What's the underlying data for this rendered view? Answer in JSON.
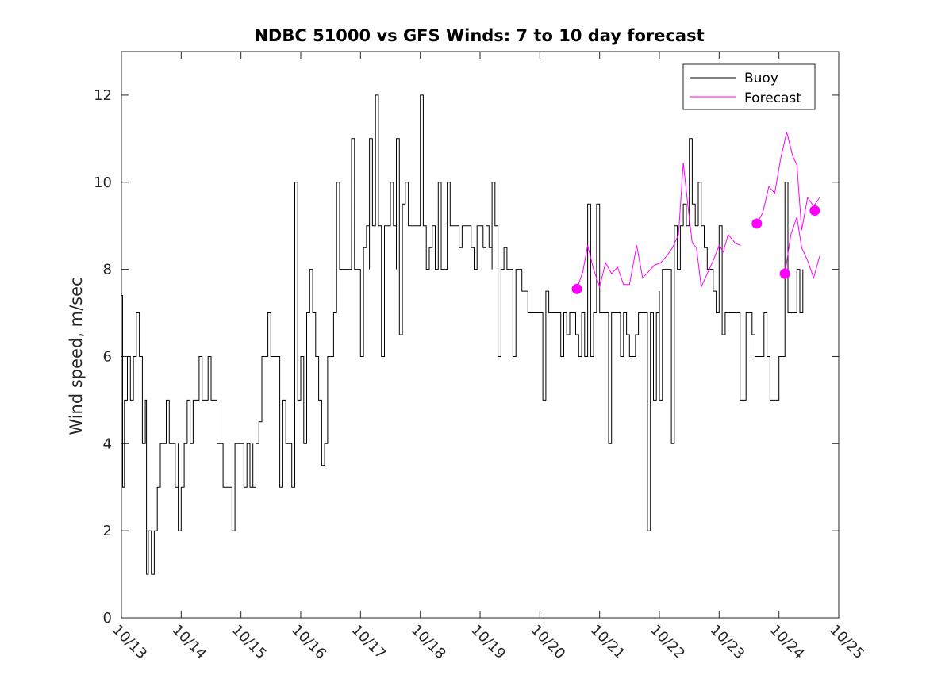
{
  "chart_data": {
    "type": "line",
    "title": "NDBC 51000 vs GFS Winds: 7 to 10 day forecast",
    "xlabel": "",
    "ylabel": "Wind speed, m/sec",
    "xlim": [
      0,
      12
    ],
    "ylim": [
      0,
      13
    ],
    "x_ticks": [
      0,
      1,
      2,
      3,
      4,
      5,
      6,
      7,
      8,
      9,
      10,
      11,
      12
    ],
    "x_tick_labels": [
      "10/13",
      "10/14",
      "10/15",
      "10/16",
      "10/17",
      "10/18",
      "10/19",
      "10/20",
      "10/21",
      "10/22",
      "10/23",
      "10/24",
      "10/25"
    ],
    "y_ticks": [
      0,
      2,
      4,
      6,
      8,
      10,
      12
    ],
    "y_tick_labels": [
      "0",
      "2",
      "4",
      "6",
      "8",
      "10",
      "12"
    ],
    "x_units": "days since 10/13",
    "legend": {
      "position": "top-right",
      "entries": [
        "Buoy",
        "Forecast"
      ]
    },
    "colors": {
      "buoy": "#000000",
      "forecast": "#ff00ff",
      "axes": "#262626"
    },
    "buoy_anchor_points": [
      [
        0.0,
        7.4
      ],
      [
        0.02,
        3.0
      ],
      [
        0.05,
        5.0
      ],
      [
        0.1,
        6.0
      ],
      [
        0.15,
        5.0
      ],
      [
        0.2,
        6.0
      ],
      [
        0.25,
        7.0
      ],
      [
        0.3,
        6.0
      ],
      [
        0.35,
        4.0
      ],
      [
        0.4,
        5.0
      ],
      [
        0.45,
        2.0
      ],
      [
        0.5,
        1.0
      ],
      [
        0.55,
        2.0
      ],
      [
        0.6,
        3.0
      ],
      [
        0.65,
        4.0
      ],
      [
        0.7,
        4.0
      ],
      [
        0.75,
        5.0
      ],
      [
        0.8,
        4.0
      ],
      [
        0.85,
        4.0
      ],
      [
        0.9,
        3.0
      ],
      [
        0.95,
        4.0
      ],
      [
        1.0,
        3.0
      ],
      [
        1.05,
        4.0
      ],
      [
        1.1,
        5.0
      ],
      [
        1.15,
        4.0
      ],
      [
        1.2,
        5.0
      ],
      [
        1.25,
        5.0
      ],
      [
        1.3,
        6.0
      ],
      [
        1.35,
        5.0
      ],
      [
        1.4,
        5.0
      ],
      [
        1.45,
        6.0
      ],
      [
        1.5,
        5.0
      ],
      [
        1.55,
        5.0
      ],
      [
        1.6,
        4.0
      ],
      [
        1.65,
        4.0
      ],
      [
        1.7,
        3.0
      ],
      [
        1.75,
        3.0
      ],
      [
        1.8,
        3.0
      ],
      [
        1.85,
        3.0
      ],
      [
        1.9,
        4.0
      ],
      [
        1.95,
        4.0
      ],
      [
        2.0,
        4.0
      ],
      [
        2.05,
        3.0
      ],
      [
        2.1,
        4.0
      ],
      [
        2.15,
        3.0
      ],
      [
        2.2,
        4.0
      ],
      [
        2.25,
        4.0
      ],
      [
        2.3,
        4.5
      ],
      [
        2.35,
        6.0
      ],
      [
        2.4,
        6.0
      ],
      [
        2.45,
        7.0
      ],
      [
        2.5,
        6.0
      ],
      [
        2.55,
        6.0
      ],
      [
        2.6,
        6.0
      ],
      [
        2.65,
        6.0
      ],
      [
        2.7,
        5.0
      ],
      [
        2.75,
        4.0
      ],
      [
        2.8,
        4.0
      ],
      [
        2.85,
        3.0
      ],
      [
        2.9,
        4.0
      ],
      [
        2.95,
        5.0
      ],
      [
        3.0,
        6.0
      ],
      [
        3.05,
        6.0
      ],
      [
        3.1,
        7.0
      ],
      [
        3.15,
        8.0
      ],
      [
        3.2,
        7.0
      ],
      [
        3.25,
        6.0
      ],
      [
        3.3,
        5.0
      ],
      [
        3.35,
        3.5
      ],
      [
        3.4,
        4.0
      ],
      [
        3.45,
        6.0
      ],
      [
        3.5,
        6.0
      ],
      [
        3.55,
        7.0
      ],
      [
        3.6,
        7.0
      ],
      [
        3.65,
        8.0
      ],
      [
        3.7,
        8.0
      ],
      [
        3.75,
        8.0
      ],
      [
        3.8,
        8.0
      ],
      [
        3.85,
        9.0
      ],
      [
        3.9,
        8.0
      ],
      [
        3.95,
        8.0
      ],
      [
        4.0,
        8.0
      ],
      [
        4.05,
        8.5
      ],
      [
        4.1,
        9.0
      ],
      [
        4.15,
        8.0
      ],
      [
        4.2,
        9.0
      ],
      [
        4.25,
        10.0
      ],
      [
        4.3,
        9.0
      ],
      [
        4.35,
        8.0
      ],
      [
        4.4,
        9.0
      ],
      [
        4.45,
        9.0
      ],
      [
        4.5,
        10.0
      ],
      [
        4.55,
        9.0
      ],
      [
        4.6,
        8.0
      ],
      [
        4.65,
        9.0
      ],
      [
        4.7,
        9.5
      ],
      [
        4.75,
        10.0
      ],
      [
        4.8,
        9.0
      ],
      [
        4.85,
        9.0
      ],
      [
        4.9,
        9.0
      ],
      [
        4.95,
        9.0
      ],
      [
        5.0,
        9.0
      ],
      [
        5.05,
        9.0
      ],
      [
        5.1,
        8.0
      ],
      [
        5.15,
        8.5
      ],
      [
        5.2,
        9.0
      ],
      [
        5.25,
        8.0
      ],
      [
        5.3,
        8.0
      ],
      [
        5.35,
        8.0
      ],
      [
        5.4,
        8.0
      ],
      [
        5.45,
        8.5
      ],
      [
        5.5,
        9.0
      ],
      [
        5.55,
        9.0
      ],
      [
        5.6,
        9.0
      ],
      [
        5.65,
        8.5
      ],
      [
        5.7,
        9.0
      ],
      [
        5.75,
        9.0
      ],
      [
        5.8,
        9.0
      ],
      [
        5.85,
        8.5
      ],
      [
        5.9,
        8.0
      ],
      [
        5.95,
        9.0
      ],
      [
        6.0,
        9.0
      ],
      [
        6.05,
        8.5
      ],
      [
        6.1,
        9.0
      ],
      [
        6.15,
        8.5
      ],
      [
        6.2,
        8.0
      ],
      [
        6.25,
        9.0
      ],
      [
        6.3,
        8.0
      ],
      [
        6.35,
        8.0
      ],
      [
        6.4,
        8.5
      ],
      [
        6.45,
        8.0
      ],
      [
        6.5,
        8.0
      ],
      [
        6.55,
        8.0
      ],
      [
        6.6,
        8.0
      ],
      [
        6.65,
        8.0
      ],
      [
        6.7,
        7.5
      ],
      [
        6.75,
        7.5
      ],
      [
        6.8,
        7.0
      ],
      [
        6.85,
        7.0
      ],
      [
        6.9,
        7.0
      ],
      [
        6.95,
        7.0
      ],
      [
        7.0,
        7.0
      ],
      [
        7.05,
        7.0
      ],
      [
        7.1,
        7.5
      ],
      [
        7.15,
        7.0
      ],
      [
        7.2,
        7.0
      ],
      [
        7.25,
        7.0
      ],
      [
        7.3,
        7.0
      ],
      [
        7.35,
        7.0
      ],
      [
        7.4,
        7.0
      ],
      [
        7.45,
        6.5
      ],
      [
        7.5,
        7.0
      ],
      [
        7.55,
        7.0
      ],
      [
        7.6,
        6.5
      ],
      [
        7.65,
        6.0
      ],
      [
        7.7,
        7.0
      ],
      [
        7.75,
        6.0
      ],
      [
        7.8,
        6.5
      ],
      [
        7.85,
        6.0
      ],
      [
        7.9,
        7.0
      ],
      [
        7.95,
        7.0
      ],
      [
        8.0,
        7.0
      ],
      [
        8.05,
        7.0
      ],
      [
        8.1,
        7.0
      ],
      [
        8.15,
        7.0
      ],
      [
        8.2,
        7.0
      ],
      [
        8.25,
        7.0
      ],
      [
        8.3,
        7.0
      ],
      [
        8.35,
        7.0
      ],
      [
        8.4,
        7.0
      ],
      [
        8.45,
        6.5
      ],
      [
        8.5,
        6.0
      ],
      [
        8.55,
        6.0
      ],
      [
        8.6,
        6.5
      ],
      [
        8.65,
        7.0
      ],
      [
        8.7,
        7.0
      ],
      [
        8.75,
        7.0
      ],
      [
        8.8,
        7.0
      ],
      [
        8.85,
        7.0
      ],
      [
        8.9,
        7.0
      ],
      [
        8.95,
        7.0
      ],
      [
        9.0,
        7.5
      ],
      [
        9.05,
        8.0
      ],
      [
        9.1,
        8.0
      ],
      [
        9.15,
        8.0
      ],
      [
        9.2,
        8.0
      ],
      [
        9.25,
        9.0
      ],
      [
        9.3,
        8.0
      ],
      [
        9.35,
        9.0
      ],
      [
        9.4,
        9.5
      ],
      [
        9.45,
        9.0
      ],
      [
        9.5,
        10.0
      ],
      [
        9.55,
        9.5
      ],
      [
        9.6,
        9.0
      ],
      [
        9.65,
        9.0
      ],
      [
        9.7,
        9.0
      ],
      [
        9.75,
        8.5
      ],
      [
        9.8,
        8.0
      ],
      [
        9.85,
        8.0
      ],
      [
        9.9,
        7.5
      ],
      [
        9.95,
        7.0
      ],
      [
        10.0,
        7.0
      ],
      [
        10.05,
        6.5
      ],
      [
        10.1,
        7.0
      ],
      [
        10.15,
        7.0
      ],
      [
        10.2,
        7.0
      ],
      [
        10.25,
        7.0
      ],
      [
        10.3,
        7.0
      ],
      [
        10.35,
        7.0
      ],
      [
        10.4,
        7.0
      ],
      [
        10.45,
        7.0
      ],
      [
        10.5,
        7.0
      ],
      [
        10.55,
        6.5
      ],
      [
        10.6,
        6.0
      ],
      [
        10.65,
        6.0
      ],
      [
        10.7,
        6.0
      ],
      [
        10.75,
        6.5
      ],
      [
        10.8,
        6.0
      ],
      [
        10.85,
        5.0
      ],
      [
        10.9,
        5.0
      ],
      [
        10.95,
        5.0
      ],
      [
        11.0,
        6.0
      ],
      [
        11.05,
        6.0
      ],
      [
        11.1,
        6.5
      ],
      [
        11.15,
        7.0
      ],
      [
        11.2,
        7.0
      ],
      [
        11.25,
        7.0
      ],
      [
        11.3,
        7.0
      ],
      [
        11.35,
        7.0
      ],
      [
        11.4,
        8.0
      ]
    ],
    "buoy_spikes": [
      [
        0.42,
        1.0
      ],
      [
        0.95,
        2.0
      ],
      [
        1.85,
        2.0
      ],
      [
        2.2,
        3.0
      ],
      [
        2.65,
        3.0
      ],
      [
        2.9,
        10.0
      ],
      [
        3.05,
        4.0
      ],
      [
        3.6,
        10.0
      ],
      [
        3.85,
        11.0
      ],
      [
        4.0,
        6.0
      ],
      [
        4.15,
        11.0
      ],
      [
        4.25,
        12.0
      ],
      [
        4.35,
        6.0
      ],
      [
        4.6,
        11.0
      ],
      [
        4.65,
        6.5
      ],
      [
        5.0,
        12.0
      ],
      [
        5.3,
        10.0
      ],
      [
        5.45,
        10.0
      ],
      [
        6.2,
        10.0
      ],
      [
        6.3,
        6.0
      ],
      [
        6.55,
        6.0
      ],
      [
        7.05,
        5.0
      ],
      [
        7.35,
        6.0
      ],
      [
        7.8,
        9.5
      ],
      [
        7.95,
        9.5
      ],
      [
        8.15,
        4.0
      ],
      [
        8.35,
        6.0
      ],
      [
        8.8,
        2.0
      ],
      [
        8.9,
        5.0
      ],
      [
        9.0,
        5.0
      ],
      [
        9.2,
        4.0
      ],
      [
        9.5,
        11.0
      ],
      [
        9.65,
        10.0
      ],
      [
        10.0,
        9.0
      ],
      [
        10.35,
        5.0
      ],
      [
        10.4,
        5.0
      ],
      [
        10.75,
        7.0
      ],
      [
        10.95,
        5.0
      ],
      [
        11.1,
        10.0
      ],
      [
        11.3,
        8.0
      ]
    ],
    "forecast_segments": [
      [
        [
          7.62,
          7.55
        ],
        [
          7.72,
          7.95
        ],
        [
          7.8,
          8.55
        ],
        [
          7.9,
          8.0
        ],
        [
          8.0,
          7.6
        ],
        [
          8.1,
          8.15
        ],
        [
          8.2,
          7.9
        ],
        [
          8.3,
          8.05
        ],
        [
          8.4,
          7.65
        ],
        [
          8.5,
          7.65
        ],
        [
          8.62,
          8.55
        ],
        [
          8.72,
          7.8
        ],
        [
          8.82,
          7.95
        ],
        [
          8.92,
          8.1
        ],
        [
          9.02,
          8.15
        ],
        [
          9.12,
          8.3
        ],
        [
          9.22,
          8.5
        ],
        [
          9.32,
          8.8
        ],
        [
          9.4,
          10.45
        ],
        [
          9.47,
          9.55
        ],
        [
          9.55,
          8.6
        ],
        [
          9.62,
          8.5
        ],
        [
          9.7,
          7.6
        ],
        [
          9.8,
          7.9
        ],
        [
          9.9,
          8.2
        ],
        [
          10.0,
          8.55
        ],
        [
          10.07,
          8.4
        ],
        [
          10.15,
          8.8
        ],
        [
          10.27,
          8.6
        ],
        [
          10.36,
          8.55
        ]
      ],
      [
        [
          10.63,
          9.05
        ],
        [
          10.73,
          9.3
        ],
        [
          10.83,
          9.9
        ],
        [
          10.93,
          9.75
        ],
        [
          11.03,
          10.55
        ],
        [
          11.13,
          11.15
        ],
        [
          11.23,
          10.6
        ],
        [
          11.3,
          10.4
        ],
        [
          11.38,
          8.9
        ],
        [
          11.48,
          9.65
        ],
        [
          11.58,
          9.45
        ],
        [
          11.68,
          9.65
        ]
      ],
      [
        [
          11.1,
          7.9
        ],
        [
          11.2,
          8.8
        ],
        [
          11.3,
          9.2
        ],
        [
          11.38,
          8.5
        ],
        [
          11.48,
          8.2
        ],
        [
          11.58,
          7.8
        ],
        [
          11.68,
          8.3
        ]
      ]
    ],
    "forecast_markers": [
      [
        7.62,
        7.55
      ],
      [
        10.63,
        9.05
      ],
      [
        11.1,
        7.9
      ],
      [
        11.6,
        9.35
      ]
    ]
  }
}
